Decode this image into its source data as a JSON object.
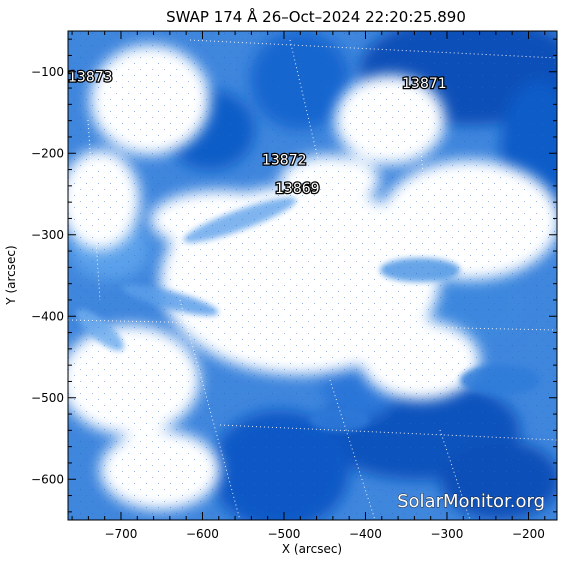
{
  "title": "SWAP 174 Å 26–Oct–2024 22:20:25.890",
  "x_axis": {
    "label": "X (arcsec)",
    "range": [
      -765,
      -165
    ],
    "ticks": [
      {
        "value": -700,
        "label": "−700"
      },
      {
        "value": -600,
        "label": "−600"
      },
      {
        "value": -500,
        "label": "−500"
      },
      {
        "value": -400,
        "label": "−400"
      },
      {
        "value": -300,
        "label": "−300"
      },
      {
        "value": -200,
        "label": "−200"
      }
    ]
  },
  "y_axis": {
    "label": "Y (arcsec)",
    "range": [
      -650,
      -50
    ],
    "ticks": [
      {
        "value": -100,
        "label": "−100"
      },
      {
        "value": -200,
        "label": "−200"
      },
      {
        "value": -300,
        "label": "−300"
      },
      {
        "value": -400,
        "label": "−400"
      },
      {
        "value": -500,
        "label": "−500"
      },
      {
        "value": -600,
        "label": "−600"
      }
    ]
  },
  "active_regions": [
    {
      "label": "13873",
      "x": -765,
      "y": -112
    },
    {
      "label": "13871",
      "x": -355,
      "y": -120
    },
    {
      "label": "13872",
      "x": -527,
      "y": -214
    },
    {
      "label": "13869",
      "x": -511,
      "y": -249
    }
  ],
  "watermark": "SolarMonitor.org",
  "colors": {
    "background": "#ffffff",
    "bright": "#ffffff",
    "mid": "#5fa0ea",
    "dark": "#0c58c6",
    "darkest": "#0a3f9a"
  }
}
